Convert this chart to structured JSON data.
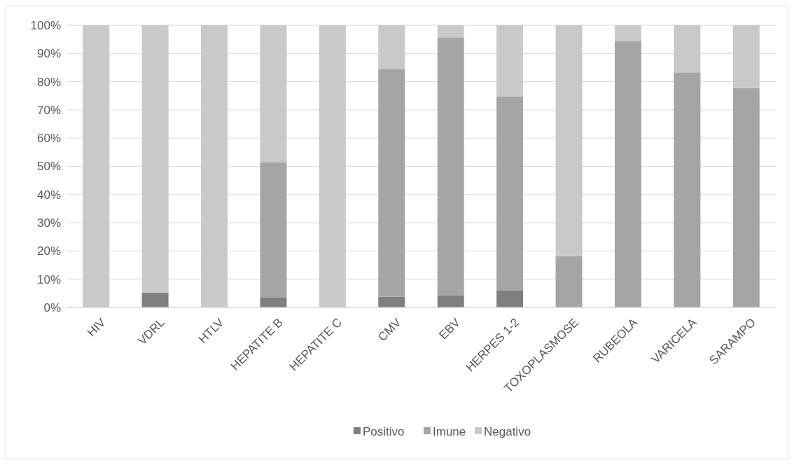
{
  "chart_data": {
    "type": "bar",
    "stacked": true,
    "categories": [
      "HIV",
      "VDRL",
      "HTLV",
      "HEPATITE B",
      "HEPATITE C",
      "CMV",
      "EBV",
      "HERPES 1-2",
      "TOXOPLASMOSE",
      "RUBEOLA",
      "VARICELA",
      "SARAMPO"
    ],
    "series": [
      {
        "name": "Positivo",
        "color": "#7f7f7f",
        "values": [
          0,
          5.2,
          0,
          3.5,
          0,
          3.8,
          4.3,
          6.1,
          0,
          0,
          0,
          0
        ]
      },
      {
        "name": "Imune",
        "color": "#a5a5a5",
        "values": [
          0,
          0,
          0,
          48,
          0,
          80.7,
          91.4,
          68.7,
          18.2,
          94.3,
          83.3,
          77.7
        ]
      },
      {
        "name": "Negativo",
        "color": "#c9c9c9",
        "values": [
          100,
          94.8,
          100,
          48.5,
          100,
          15.5,
          4.3,
          25.2,
          81.8,
          5.7,
          16.7,
          22.3
        ]
      }
    ],
    "ylim": [
      0,
      100
    ],
    "yticks": [
      {
        "value": 0,
        "label": "0%"
      },
      {
        "value": 10,
        "label": "10%"
      },
      {
        "value": 20,
        "label": "20%"
      },
      {
        "value": 30,
        "label": "30%"
      },
      {
        "value": 40,
        "label": "40%"
      },
      {
        "value": 50,
        "label": "50%"
      },
      {
        "value": 60,
        "label": "60%"
      },
      {
        "value": 70,
        "label": "70%"
      },
      {
        "value": 80,
        "label": "80%"
      },
      {
        "value": 90,
        "label": "90%"
      },
      {
        "value": 100,
        "label": "100%"
      }
    ],
    "grid": "y",
    "legend": "bottom"
  }
}
